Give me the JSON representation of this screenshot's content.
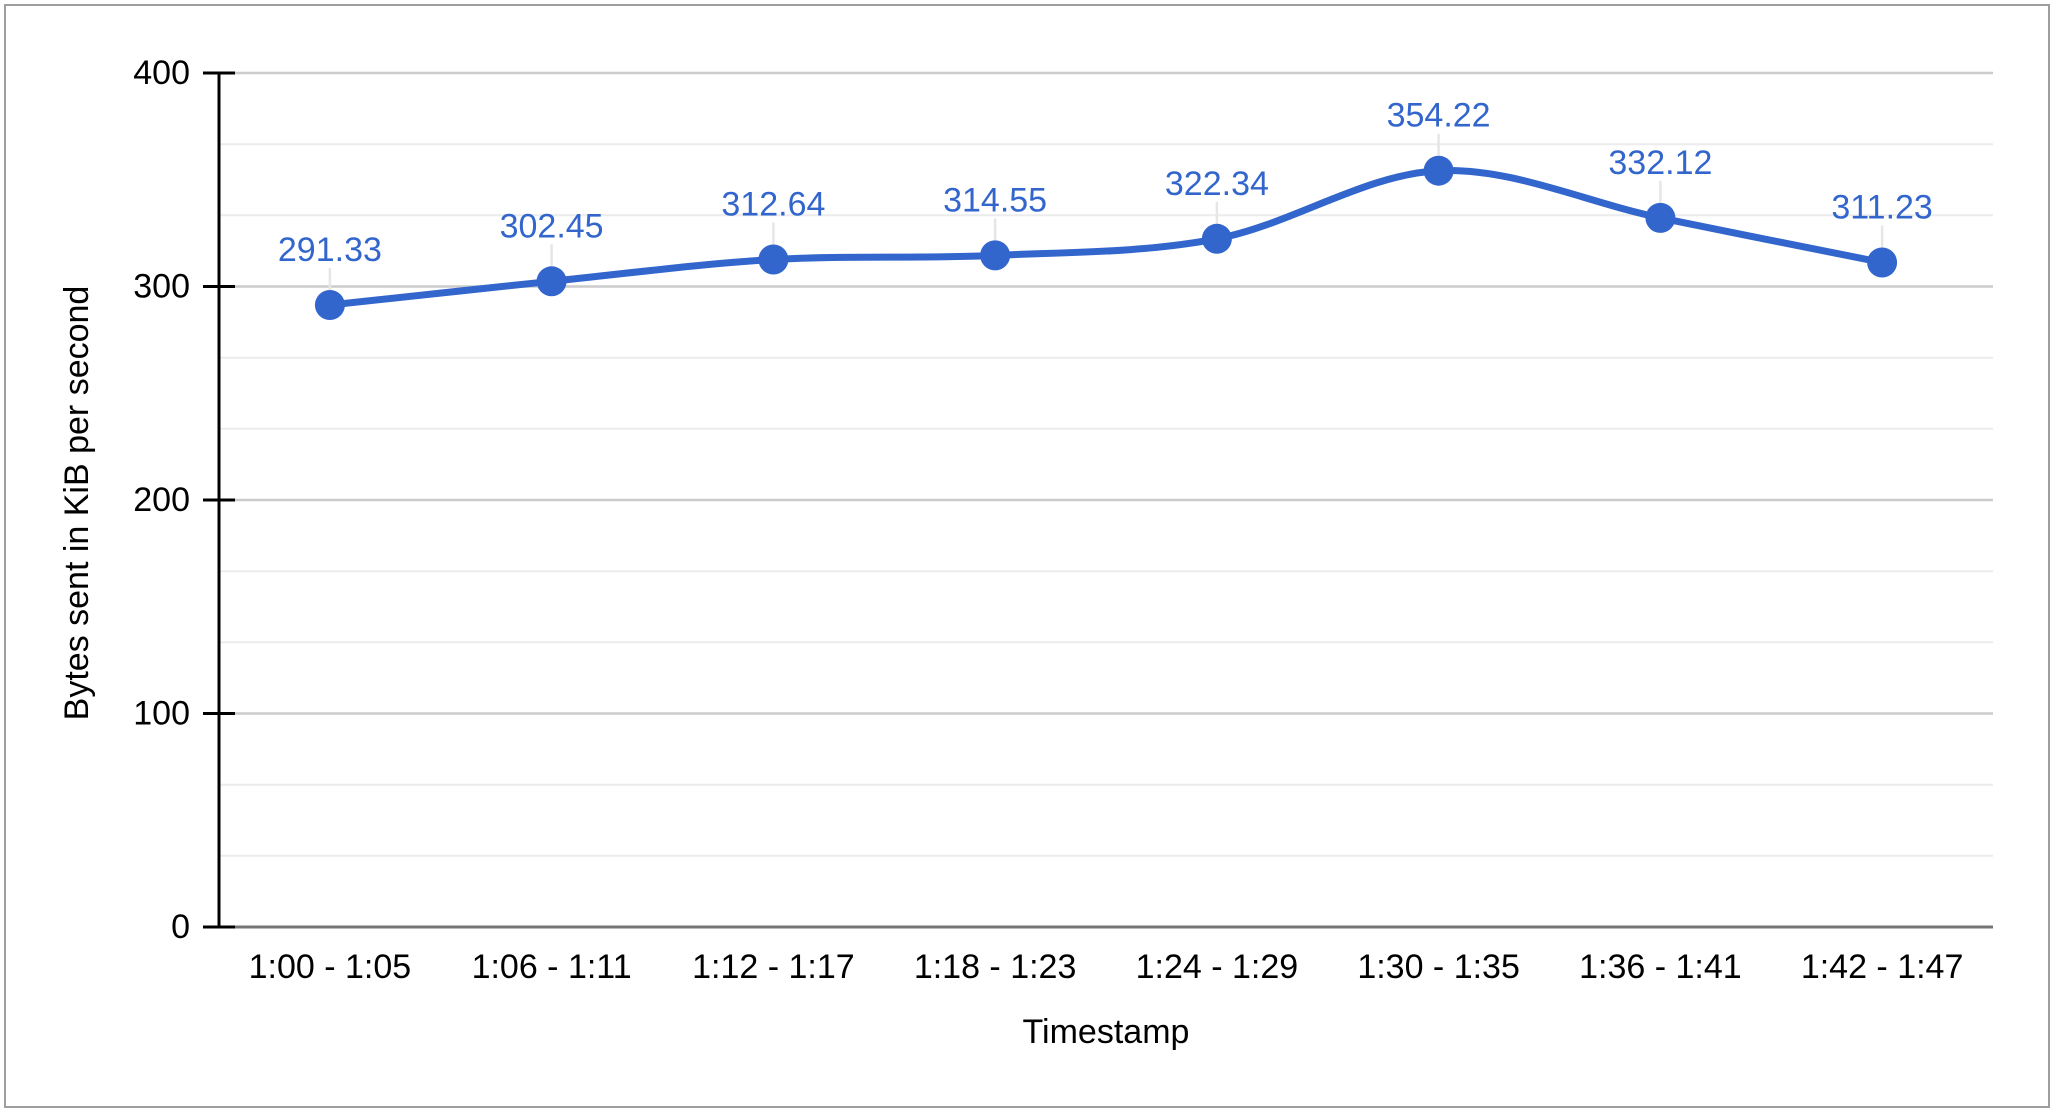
{
  "colors": {
    "series": "#3366cc",
    "data_label": "#3366cc",
    "major_gridline": "#cccccc",
    "minor_gridline": "#ececec",
    "leader_line": "#e6e6e6",
    "y_axis_line": "#000000",
    "x_baseline": "#757575",
    "axis_text": "#000000",
    "canvas_border": "#9e9e9e",
    "background": "#ffffff"
  },
  "chart_data": {
    "type": "line",
    "smooth": true,
    "xlabel": "Timestamp",
    "ylabel": "Bytes sent in KiB per second",
    "categories": [
      "1:00 - 1:05",
      "1:06 - 1:11",
      "1:12 - 1:17",
      "1:18 - 1:23",
      "1:24 - 1:29",
      "1:30 - 1:35",
      "1:36 - 1:41",
      "1:42 - 1:47"
    ],
    "values": [
      291.33,
      302.45,
      312.64,
      314.55,
      322.34,
      354.22,
      332.12,
      311.23
    ],
    "point_labels": [
      "291.33",
      "302.45",
      "312.64",
      "314.55",
      "322.34",
      "354.22",
      "332.12",
      "311.23"
    ],
    "ylim": [
      0,
      400
    ],
    "yticks": [
      0,
      100,
      200,
      300,
      400
    ],
    "ytick_labels": [
      "0",
      "100",
      "200",
      "300",
      "400"
    ],
    "minor_gridlines_between_major": 2,
    "grid": true,
    "legend": "none",
    "point_markers": true
  }
}
